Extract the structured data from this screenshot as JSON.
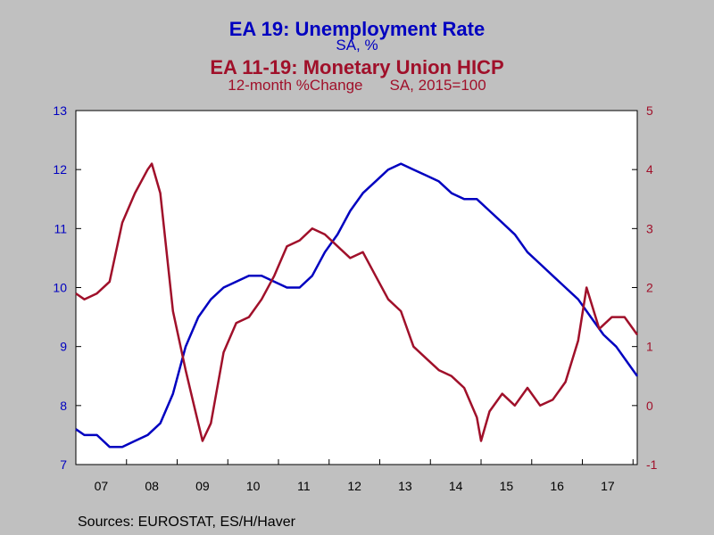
{
  "colors": {
    "blue": "#0000c0",
    "red": "#a0102a",
    "background": "#c0c0c0",
    "plot_bg": "#ffffff"
  },
  "titles": {
    "series1_title": "EA 19: Unemployment Rate",
    "series1_sub": "SA, %",
    "series2_title": "EA 11-19: Monetary Union HICP",
    "series2_sub_a": "12-month %Change",
    "series2_sub_b": "SA, 2015=100"
  },
  "source": "Sources:  EUROSTAT, ES/H/Haver",
  "chart_data": {
    "type": "line",
    "x_ticks": [
      "07",
      "08",
      "09",
      "10",
      "11",
      "12",
      "13",
      "14",
      "15",
      "16",
      "17"
    ],
    "x_range": [
      "2007-01",
      "2018-02"
    ],
    "left_axis": {
      "ylim": [
        7,
        13
      ],
      "ticks": [
        "7",
        "8",
        "9",
        "10",
        "11",
        "12",
        "13"
      ]
    },
    "right_axis": {
      "ylim": [
        -1,
        5
      ],
      "ticks": [
        "-1",
        "0",
        "1",
        "2",
        "3",
        "4",
        "5"
      ]
    },
    "grid": false,
    "series": [
      {
        "axis": "left",
        "color": "blue",
        "x": [
          "2007-01",
          "2007-03",
          "2007-06",
          "2007-09",
          "2007-12",
          "2008-03",
          "2008-06",
          "2008-09",
          "2008-12",
          "2009-03",
          "2009-06",
          "2009-09",
          "2009-12",
          "2010-03",
          "2010-06",
          "2010-09",
          "2010-12",
          "2011-03",
          "2011-06",
          "2011-09",
          "2011-12",
          "2012-03",
          "2012-06",
          "2012-09",
          "2012-12",
          "2013-03",
          "2013-06",
          "2013-09",
          "2013-12",
          "2014-03",
          "2014-06",
          "2014-09",
          "2014-12",
          "2015-03",
          "2015-06",
          "2015-09",
          "2015-12",
          "2016-03",
          "2016-06",
          "2016-09",
          "2016-12",
          "2017-03",
          "2017-06",
          "2017-09",
          "2017-12",
          "2018-02"
        ],
        "values": [
          7.6,
          7.5,
          7.5,
          7.3,
          7.3,
          7.4,
          7.5,
          7.7,
          8.2,
          9.0,
          9.5,
          9.8,
          10.0,
          10.1,
          10.2,
          10.2,
          10.1,
          10.0,
          10.0,
          10.2,
          10.6,
          10.9,
          11.3,
          11.6,
          11.8,
          12.0,
          12.1,
          12.0,
          11.9,
          11.8,
          11.6,
          11.5,
          11.5,
          11.3,
          11.1,
          10.9,
          10.6,
          10.4,
          10.2,
          10.0,
          9.8,
          9.5,
          9.2,
          9.0,
          8.7,
          8.5
        ],
        "values_rounding_note": null
      },
      {
        "axis": "right",
        "color": "red",
        "x": [
          "2007-01",
          "2007-03",
          "2007-06",
          "2007-09",
          "2007-12",
          "2008-03",
          "2008-06",
          "2008-07",
          "2008-09",
          "2008-12",
          "2009-03",
          "2009-05",
          "2009-07",
          "2009-09",
          "2009-12",
          "2010-03",
          "2010-06",
          "2010-09",
          "2010-12",
          "2011-03",
          "2011-06",
          "2011-09",
          "2011-12",
          "2012-03",
          "2012-06",
          "2012-09",
          "2012-12",
          "2013-03",
          "2013-06",
          "2013-09",
          "2013-12",
          "2014-03",
          "2014-06",
          "2014-09",
          "2014-12",
          "2015-01",
          "2015-03",
          "2015-06",
          "2015-09",
          "2015-12",
          "2016-03",
          "2016-06",
          "2016-09",
          "2016-12",
          "2017-02",
          "2017-05",
          "2017-08",
          "2017-11",
          "2018-02"
        ],
        "values": [
          1.9,
          1.8,
          1.9,
          2.1,
          3.1,
          3.6,
          4.0,
          4.1,
          3.6,
          1.6,
          0.6,
          0.0,
          -0.6,
          -0.3,
          0.9,
          1.4,
          1.5,
          1.8,
          2.2,
          2.7,
          2.8,
          3.0,
          2.9,
          2.7,
          2.5,
          2.6,
          2.2,
          1.8,
          1.6,
          1.0,
          0.8,
          0.6,
          0.5,
          0.3,
          -0.2,
          -0.6,
          -0.1,
          0.2,
          0.0,
          0.3,
          0.0,
          0.1,
          0.4,
          1.1,
          2.0,
          1.3,
          1.5,
          1.5,
          1.2
        ]
      }
    ]
  }
}
